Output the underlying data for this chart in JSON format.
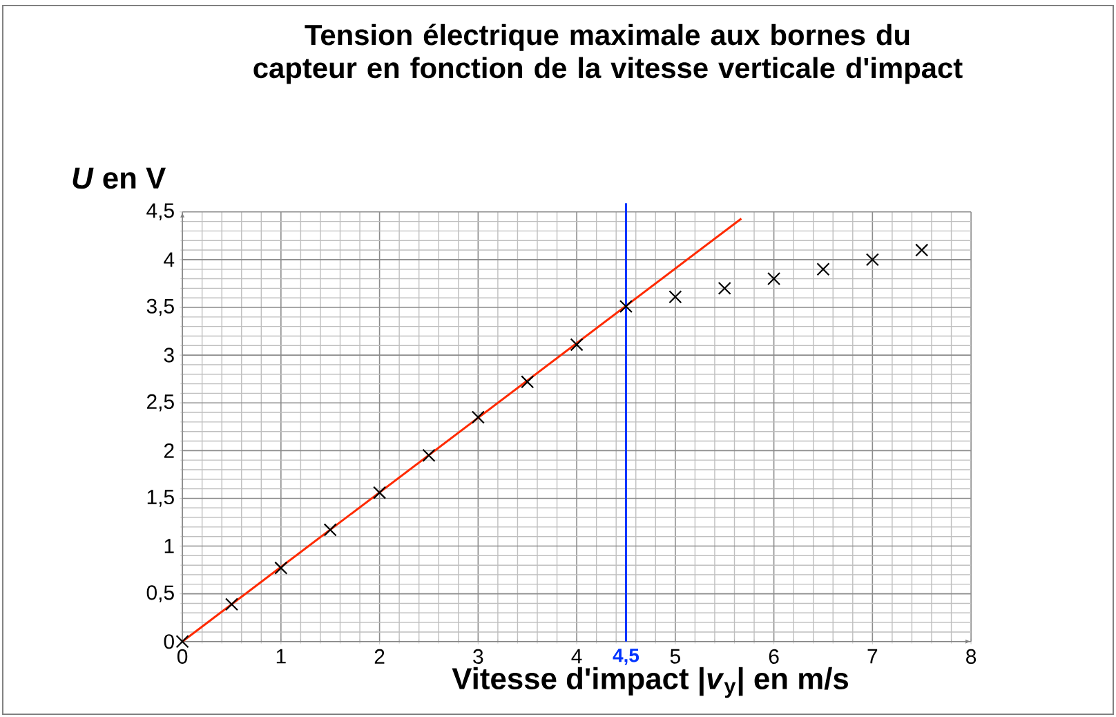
{
  "chart_data": {
    "type": "scatter",
    "title": "Tension électrique maximale aux bornes du capteur en fonction de la vitesse verticale d'impact",
    "xlabel": "Vitesse d'impact |*v*$_{y}$|  en m/s",
    "ylabel": "*U* en V",
    "xlim": [
      0,
      8
    ],
    "xticks": [
      0,
      1,
      2,
      3,
      4,
      5,
      6,
      7,
      8
    ],
    "ylim": [
      0,
      4.5
    ],
    "yticks": [
      0,
      {
        "value": 0.5,
        "label": "0,5"
      },
      1,
      {
        "value": 1.5,
        "label": "1,5"
      },
      2,
      {
        "value": 2.5,
        "label": "2,5"
      },
      3,
      {
        "value": 3.5,
        "label": "3,5"
      },
      4,
      {
        "value": 4.5,
        "label": "4,5"
      }
    ],
    "grid": true,
    "marker": "cross",
    "series": [
      {
        "type": "scatter",
        "color": "#000000",
        "x": [
          0,
          0.5,
          1,
          1.5,
          2,
          2.5,
          3,
          3.5,
          4,
          4.5,
          5,
          5.5,
          6,
          6.5,
          7,
          7.5
        ],
        "values": [
          0,
          0.39,
          0.77,
          1.17,
          1.56,
          1.95,
          2.35,
          2.72,
          3.11,
          3.51,
          3.61,
          3.7,
          3.8,
          3.9,
          4.0,
          4.1
        ]
      },
      {
        "type": "line",
        "color": "#ff2a00",
        "line_style": "solid",
        "marker": "none",
        "x": [
          0,
          5.67
        ],
        "values": [
          0,
          4.43
        ]
      }
    ],
    "ref_lines": [
      {
        "axis": "x",
        "value": 4.5,
        "label": "4,5",
        "color": "#0033ff"
      }
    ]
  }
}
